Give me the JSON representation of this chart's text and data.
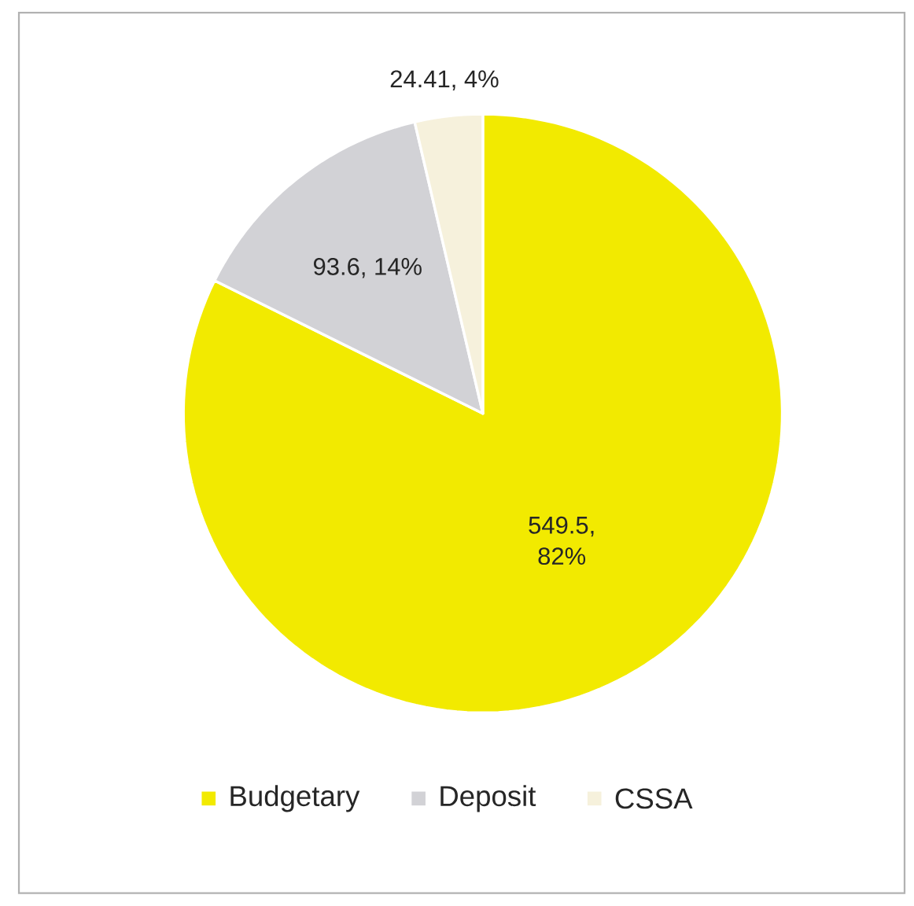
{
  "chart_data": {
    "type": "pie",
    "categories": [
      "Budgetary",
      "Deposit",
      "CSSA"
    ],
    "values": [
      549.5,
      93.6,
      24.41
    ],
    "value_labels": [
      "549.5, 82%",
      "93.6, 14%",
      "24.41, 4%"
    ],
    "colors": [
      "#f2ea00",
      "#d2d2d6",
      "#f6f1dc"
    ],
    "legend": "bottom"
  }
}
